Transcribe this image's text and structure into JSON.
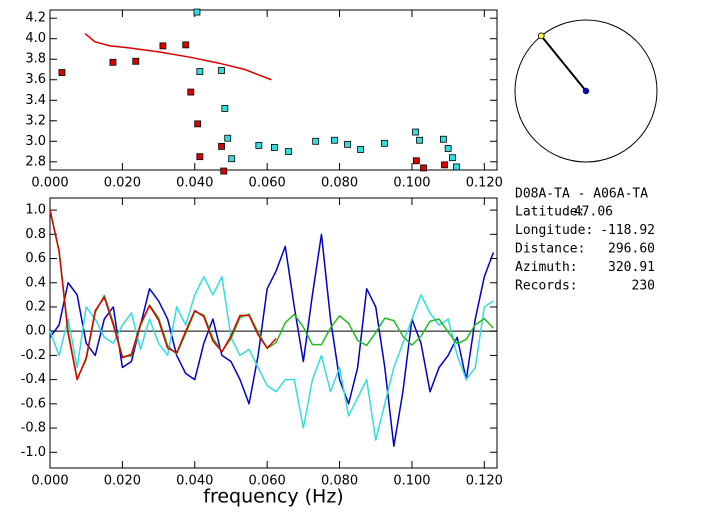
{
  "chart_data": [
    {
      "type": "scatter",
      "xlim": [
        0,
        0.1235
      ],
      "ylim": [
        2.72,
        4.28
      ],
      "xticks": [
        {
          "value": 0,
          "label": "0.000"
        },
        {
          "value": 0.02,
          "label": "0.020"
        },
        {
          "value": 0.04,
          "label": "0.040"
        },
        {
          "value": 0.06,
          "label": "0.060"
        },
        {
          "value": 0.08,
          "label": "0.080"
        },
        {
          "value": 0.1,
          "label": "0.100"
        },
        {
          "value": 0.12,
          "label": "0.120"
        }
      ],
      "yticks": [
        2.8,
        {
          "value": 3,
          "label": "3.0"
        },
        3.2,
        3.4,
        3.6,
        3.8,
        {
          "value": 4,
          "label": "4.0"
        },
        4.2
      ],
      "series": [
        {
          "color": "#dd0000",
          "marker": "square",
          "x": [
            0.0033,
            0.0174,
            0.0237,
            0.0312,
            0.0375,
            0.0389,
            0.0408,
            0.0414,
            0.0474,
            0.048,
            0.1012,
            0.1032,
            0.109
          ],
          "values": [
            3.67,
            3.77,
            3.78,
            3.93,
            3.94,
            3.48,
            3.17,
            2.85,
            2.95,
            2.71,
            2.81,
            2.74,
            2.77
          ]
        },
        {
          "color": "#33dddd",
          "marker": "square",
          "x": [
            0.0406,
            0.0414,
            0.0474,
            0.0483,
            0.0491,
            0.0502,
            0.0577,
            0.062,
            0.0659,
            0.0734,
            0.0786,
            0.0822,
            0.0858,
            0.0924,
            0.101,
            0.1021,
            0.1087,
            0.11,
            0.1112,
            0.1123
          ],
          "values": [
            4.26,
            3.68,
            3.69,
            3.32,
            3.03,
            2.83,
            2.96,
            2.94,
            2.9,
            3.0,
            3.01,
            2.97,
            2.92,
            2.98,
            3.09,
            3.01,
            3.02,
            2.93,
            2.84,
            2.75
          ]
        },
        {
          "type": "line",
          "color": "#dd0000",
          "x": [
            0.0097,
            0.0124,
            0.0166,
            0.0221,
            0.0303,
            0.0386,
            0.0469,
            0.0538,
            0.0612
          ],
          "values": [
            4.05,
            3.97,
            3.93,
            3.91,
            3.87,
            3.82,
            3.76,
            3.7,
            3.6
          ]
        }
      ]
    },
    {
      "type": "line",
      "x_label": "frequency (Hz)",
      "xlim": [
        0,
        0.1235
      ],
      "ylim": [
        -1.13,
        1.1
      ],
      "xticks": [
        {
          "value": 0,
          "label": "0.000"
        },
        {
          "value": 0.02,
          "label": "0.020"
        },
        {
          "value": 0.04,
          "label": "0.040"
        },
        {
          "value": 0.06,
          "label": "0.060"
        },
        {
          "value": 0.08,
          "label": "0.080"
        },
        {
          "value": 0.1,
          "label": "0.100"
        },
        {
          "value": 0.12,
          "label": "0.120"
        }
      ],
      "yticks": [
        {
          "value": -1,
          "label": "-1.0"
        },
        -0.8,
        -0.6,
        -0.4,
        -0.2,
        {
          "value": 0,
          "label": "0.0"
        },
        0.2,
        0.4,
        0.6,
        0.8,
        {
          "value": 1,
          "label": "1.0"
        }
      ],
      "x": [
        0,
        0.0025,
        0.005,
        0.0075,
        0.01,
        0.0125,
        0.015,
        0.0175,
        0.02,
        0.0225,
        0.025,
        0.0275,
        0.03,
        0.0325,
        0.035,
        0.0375,
        0.04,
        0.0425,
        0.045,
        0.0475,
        0.05,
        0.0525,
        0.055,
        0.0575,
        0.06,
        0.0625,
        0.065,
        0.0675,
        0.07,
        0.0725,
        0.075,
        0.0775,
        0.08,
        0.0825,
        0.085,
        0.0875,
        0.09,
        0.0925,
        0.095,
        0.0975,
        0.1,
        0.1025,
        0.105,
        0.1075,
        0.11,
        0.1125,
        0.115,
        0.1175,
        0.12,
        0.1225
      ],
      "series": [
        {
          "color": "#0000c8",
          "values": [
            -0.05,
            0.05,
            0.4,
            0.3,
            -0.1,
            -0.2,
            0.1,
            0.2,
            -0.3,
            -0.25,
            0.05,
            0.35,
            0.25,
            0.1,
            -0.2,
            -0.35,
            -0.4,
            -0.1,
            0.1,
            -0.2,
            -0.25,
            -0.4,
            -0.6,
            -0.2,
            0.35,
            0.5,
            0.7,
            0.2,
            -0.25,
            0.3,
            0.8,
            0.1,
            -0.4,
            -0.6,
            -0.3,
            0.35,
            0.2,
            -0.3,
            -0.95,
            -0.5,
            0.1,
            -0.1,
            -0.5,
            -0.3,
            -0.2,
            -0.05,
            -0.4,
            0.1,
            0.45,
            0.65
          ]
        },
        {
          "color": "#33dddd",
          "values": [
            0.0,
            -0.2,
            0.1,
            -0.3,
            0.2,
            0.1,
            -0.05,
            -0.1,
            0.05,
            0.15,
            -0.15,
            0.1,
            -0.1,
            -0.2,
            0.2,
            0.05,
            0.3,
            0.45,
            0.3,
            0.45,
            -0.05,
            -0.2,
            -0.15,
            -0.3,
            -0.45,
            -0.5,
            -0.4,
            -0.4,
            -0.8,
            -0.4,
            -0.2,
            -0.5,
            -0.3,
            -0.7,
            -0.55,
            -0.4,
            -0.9,
            -0.6,
            -0.3,
            -0.1,
            0.1,
            0.3,
            0.15,
            0.05,
            0.1,
            -0.2,
            -0.4,
            -0.3,
            0.2,
            0.25
          ]
        },
        {
          "color": "#22bb22",
          "values": [
            1,
            0.671,
            0.003,
            -0.39,
            -0.235,
            0.154,
            0.296,
            0.07,
            -0.208,
            -0.205,
            0.045,
            0.216,
            0.11,
            -0.121,
            -0.188,
            -0.019,
            0.162,
            0.133,
            -0.059,
            -0.167,
            -0.063,
            0.113,
            0.141,
            -0.009,
            -0.142,
            -0.093,
            0.07,
            0.139,
            0.033,
            -0.111,
            -0.111,
            0.027,
            0.127,
            0.065,
            -0.077,
            -0.118,
            -0.011,
            0.108,
            0.087,
            -0.042,
            -0.115,
            -0.042,
            0.082,
            0.1,
            -0.007,
            -0.104,
            -0.067,
            0.053,
            0.104,
            0.024
          ]
        },
        {
          "color": "#dd0000",
          "values": [
            1,
            0.66,
            -0.02,
            -0.4,
            -0.22,
            0.17,
            0.28,
            0.05,
            -0.22,
            -0.19,
            0.06,
            0.21,
            0.09,
            -0.14,
            -0.18,
            0.0,
            0.17,
            0.12,
            -0.08,
            -0.17,
            -0.04,
            0.13,
            0.13,
            -0.03,
            -0.14,
            -0.06,
            null,
            null,
            null,
            null,
            null,
            null,
            null,
            null,
            null,
            null,
            null,
            null,
            null,
            null,
            null,
            null,
            null,
            null,
            null,
            null,
            null,
            null,
            null,
            null
          ]
        }
      ]
    }
  ],
  "info": {
    "title": "D08A-TA - A06A-TA",
    "rows": [
      {
        "label": "Latitude:",
        "value": "47.06"
      },
      {
        "label": "Longitude:",
        "value": "-118.92"
      },
      {
        "label": "Distance:",
        "value": "296.60"
      },
      {
        "label": "Azimuth:",
        "value": "320.91"
      },
      {
        "label": "Records:",
        "value": "230"
      }
    ]
  }
}
